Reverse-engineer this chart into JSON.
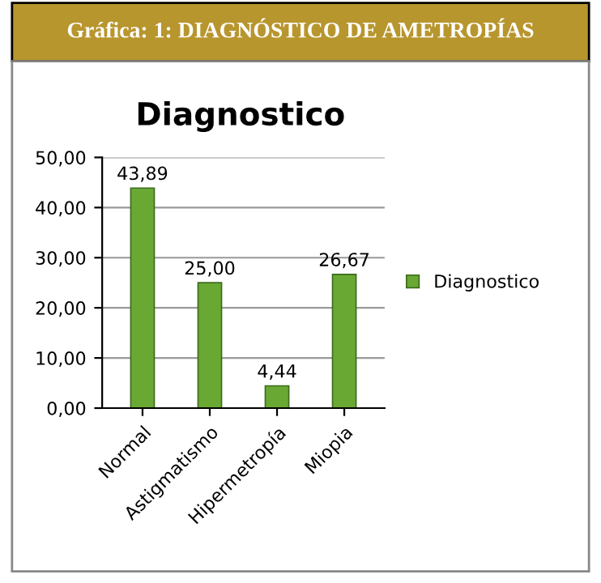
{
  "chart_data": {
    "type": "bar",
    "title": "Gráfica: 1: DIAGNÓSTICO DE AMETROPÍAS",
    "subtitle": "Diagnostico",
    "categories": [
      "Normal",
      "Astigmatismo",
      "Hipermetropía",
      "Miopia"
    ],
    "series": [
      {
        "name": "Diagnostico",
        "color": "#6aa834",
        "values": [
          43.89,
          25.0,
          4.44,
          26.67
        ],
        "value_labels": [
          "43,89",
          "25,00",
          "4,44",
          "26,67"
        ]
      }
    ],
    "ylim": [
      0,
      50
    ],
    "yticks": [
      {
        "value": 0,
        "label": "0,00"
      },
      {
        "value": 10,
        "label": "10,00"
      },
      {
        "value": 20,
        "label": "20,00"
      },
      {
        "value": 30,
        "label": "30,00"
      },
      {
        "value": 40,
        "label": "40,00"
      },
      {
        "value": 50,
        "label": "50,00"
      }
    ],
    "grid": "y",
    "legend": "right"
  }
}
